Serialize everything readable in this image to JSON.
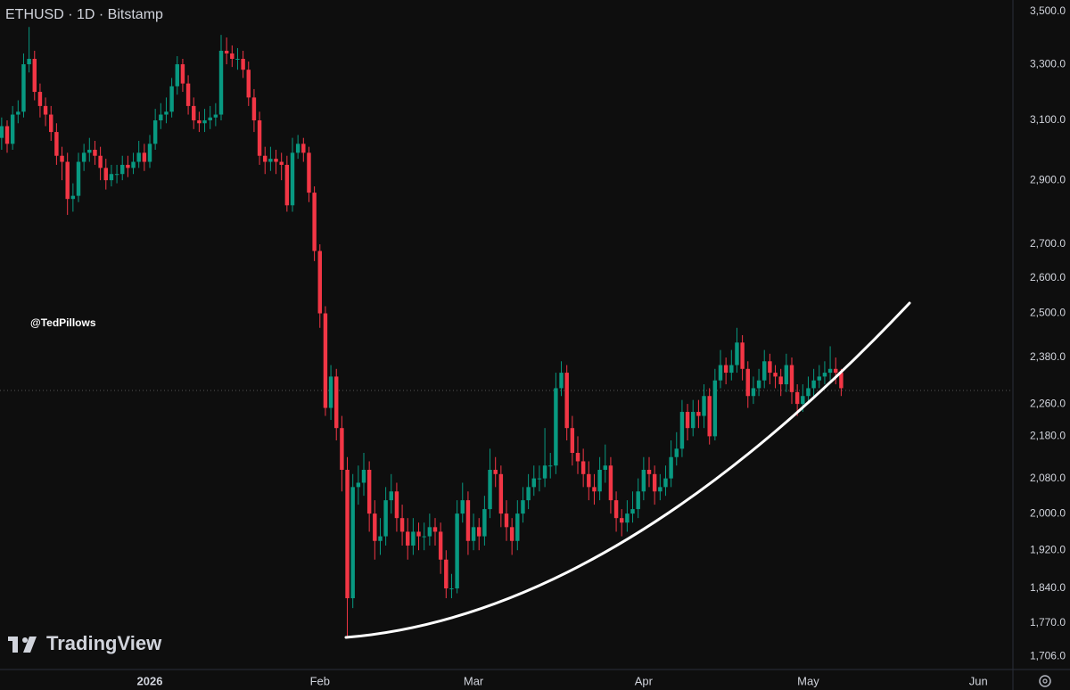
{
  "chart_data": {
    "type": "candlestick",
    "title": "ETHUSD · 1D · Bitstamp",
    "watermark": "@TedPillows",
    "brand": "TradingView",
    "up_color": "#089981",
    "down_color": "#f23645",
    "log_scale": true,
    "grid": false,
    "xlim": [
      -0.3,
      184.3
    ],
    "xticks": [
      {
        "value": 27,
        "label": "2026"
      },
      {
        "value": 58,
        "label": "Feb"
      },
      {
        "value": 86,
        "label": "Mar"
      },
      {
        "value": 117,
        "label": "Apr"
      },
      {
        "value": 147,
        "label": "May"
      },
      {
        "value": 178,
        "label": "Jun"
      }
    ],
    "ylim": [
      1681,
      3545
    ],
    "yticks": [
      {
        "value": 3500,
        "label": "3,500.0"
      },
      {
        "value": 3300,
        "label": "3,300.0"
      },
      {
        "value": 3100,
        "label": "3,100.0"
      },
      {
        "value": 2900,
        "label": "2,900.0"
      },
      {
        "value": 2700,
        "label": "2,700.0"
      },
      {
        "value": 2600,
        "label": "2,600.0"
      },
      {
        "value": 2500,
        "label": "2,500.0"
      },
      {
        "value": 2380,
        "label": "2,380.0"
      },
      {
        "value": 2260,
        "label": "2,260.0"
      },
      {
        "value": 2180,
        "label": "2,180.0"
      },
      {
        "value": 2080,
        "label": "2,080.0"
      },
      {
        "value": 2000,
        "label": "2,000.0"
      },
      {
        "value": 1920,
        "label": "1,920.0"
      },
      {
        "value": 1840,
        "label": "1,840.0"
      },
      {
        "value": 1770,
        "label": "1,770.0"
      },
      {
        "value": 1706,
        "label": "1,706.0"
      }
    ],
    "open": [
      3040,
      3080,
      3020,
      3120,
      3130,
      3300,
      3320,
      3200,
      3150,
      3120,
      3060,
      2980,
      2960,
      2840,
      2850,
      2960,
      2990,
      3000,
      2980,
      2940,
      2900,
      2920,
      2920,
      2950,
      2940,
      2960,
      2990,
      2960,
      3020,
      3100,
      3120,
      3130,
      3220,
      3300,
      3230,
      3150,
      3100,
      3090,
      3100,
      3110,
      3120,
      3350,
      3340,
      3320,
      3320,
      3280,
      3180,
      3100,
      2980,
      2960,
      2970,
      2960,
      2950,
      2820,
      2990,
      3020,
      2990,
      2860,
      2680,
      2500,
      2250,
      2330,
      2200,
      2100,
      1820,
      2060,
      2070,
      2100,
      2000,
      1940,
      1950,
      2030,
      2050,
      1990,
      1960,
      1930,
      1960,
      1950,
      1950,
      1970,
      1960,
      1900,
      1840,
      1840,
      2000,
      2030,
      1940,
      1970,
      1950,
      2010,
      2100,
      2090,
      2000,
      1970,
      1940,
      2000,
      2030,
      2060,
      2080,
      2080,
      2110,
      2110,
      2300,
      2340,
      2200,
      2140,
      2120,
      2090,
      2060,
      2050,
      2100,
      2110,
      2030,
      1990,
      1980,
      2000,
      2010,
      2050,
      2100,
      2090,
      2050,
      2060,
      2080,
      2130,
      2150,
      2240,
      2200,
      2240,
      2230,
      2280,
      2180,
      2320,
      2360,
      2340,
      2360,
      2420,
      2350,
      2280,
      2300,
      2320,
      2370,
      2340,
      2330,
      2310,
      2360,
      2290,
      2260,
      2280,
      2300,
      2320,
      2330,
      2340,
      2350,
      2340
    ],
    "high": [
      3110,
      3100,
      3150,
      3170,
      3340,
      3440,
      3350,
      3230,
      3180,
      3150,
      3090,
      3010,
      2990,
      2890,
      2990,
      3020,
      3040,
      3030,
      3010,
      2970,
      2950,
      2950,
      2980,
      2980,
      2990,
      3030,
      3020,
      3050,
      3140,
      3160,
      3180,
      3250,
      3330,
      3320,
      3260,
      3180,
      3130,
      3140,
      3150,
      3160,
      3410,
      3400,
      3370,
      3360,
      3350,
      3310,
      3210,
      3130,
      3010,
      3010,
      3000,
      2990,
      2980,
      3040,
      3050,
      3040,
      3010,
      2880,
      2700,
      2520,
      2360,
      2350,
      2230,
      2130,
      2090,
      2110,
      2140,
      2120,
      2030,
      1990,
      2060,
      2090,
      2070,
      2020,
      1990,
      1990,
      1980,
      1980,
      2000,
      1990,
      1980,
      1920,
      1870,
      2030,
      2070,
      2050,
      2000,
      1990,
      2040,
      2150,
      2130,
      2110,
      2030,
      1990,
      2030,
      2060,
      2090,
      2110,
      2110,
      2200,
      2140,
      2340,
      2370,
      2360,
      2230,
      2180,
      2150,
      2120,
      2090,
      2130,
      2160,
      2130,
      2050,
      2010,
      2030,
      2050,
      2080,
      2130,
      2130,
      2110,
      2090,
      2110,
      2170,
      2190,
      2270,
      2260,
      2270,
      2270,
      2310,
      2300,
      2350,
      2400,
      2380,
      2400,
      2460,
      2440,
      2370,
      2330,
      2350,
      2400,
      2390,
      2360,
      2350,
      2390,
      2380,
      2310,
      2310,
      2330,
      2350,
      2360,
      2370,
      2410,
      2380,
      2350
    ],
    "low": [
      3000,
      2990,
      3000,
      3090,
      3110,
      3270,
      3170,
      3110,
      3080,
      3030,
      2950,
      2900,
      2790,
      2800,
      2830,
      2930,
      2960,
      2950,
      2900,
      2870,
      2880,
      2890,
      2900,
      2910,
      2920,
      2940,
      2930,
      2940,
      3000,
      3070,
      3090,
      3110,
      3190,
      3200,
      3120,
      3070,
      3060,
      3060,
      3070,
      3080,
      3100,
      3300,
      3290,
      3280,
      3250,
      3150,
      3060,
      2950,
      2920,
      2930,
      2920,
      2900,
      2800,
      2800,
      2970,
      2960,
      2830,
      2650,
      2460,
      2230,
      2220,
      2170,
      2050,
      1745,
      1800,
      2020,
      2040,
      1960,
      1900,
      1910,
      1930,
      2000,
      1960,
      1930,
      1900,
      1910,
      1920,
      1920,
      1930,
      1930,
      1870,
      1820,
      1820,
      1830,
      1980,
      1910,
      1920,
      1920,
      1930,
      1990,
      2060,
      1970,
      1940,
      1910,
      1920,
      1980,
      2010,
      2040,
      2050,
      2060,
      2080,
      2090,
      2280,
      2170,
      2110,
      2090,
      2060,
      2030,
      2020,
      2030,
      2070,
      2000,
      1960,
      1950,
      1960,
      1980,
      1990,
      2030,
      2060,
      2020,
      2030,
      2040,
      2060,
      2110,
      2130,
      2170,
      2180,
      2200,
      2200,
      2160,
      2170,
      2300,
      2310,
      2320,
      2340,
      2320,
      2250,
      2260,
      2280,
      2300,
      2310,
      2300,
      2280,
      2290,
      2260,
      2230,
      2240,
      2260,
      2280,
      2300,
      2310,
      2320,
      2310,
      2280
    ],
    "close": [
      3080,
      3020,
      3120,
      3130,
      3300,
      3320,
      3200,
      3150,
      3120,
      3060,
      2980,
      2960,
      2840,
      2850,
      2960,
      2990,
      3000,
      2980,
      2940,
      2900,
      2920,
      2920,
      2950,
      2940,
      2960,
      2990,
      2960,
      3020,
      3100,
      3120,
      3130,
      3220,
      3300,
      3230,
      3150,
      3100,
      3090,
      3100,
      3110,
      3120,
      3350,
      3340,
      3320,
      3320,
      3280,
      3180,
      3100,
      2980,
      2960,
      2970,
      2960,
      2950,
      2820,
      2990,
      3020,
      2990,
      2860,
      2680,
      2500,
      2250,
      2330,
      2200,
      2100,
      1820,
      2060,
      2070,
      2100,
      2000,
      1940,
      1950,
      2030,
      2050,
      1990,
      1960,
      1930,
      1960,
      1950,
      1950,
      1970,
      1960,
      1900,
      1840,
      1840,
      2000,
      2030,
      1940,
      1970,
      1950,
      2010,
      2100,
      2090,
      2000,
      1970,
      1940,
      2000,
      2030,
      2060,
      2080,
      2080,
      2110,
      2110,
      2300,
      2340,
      2200,
      2140,
      2120,
      2090,
      2060,
      2050,
      2100,
      2110,
      2030,
      1990,
      1980,
      2000,
      2010,
      2050,
      2100,
      2090,
      2050,
      2060,
      2080,
      2130,
      2150,
      2240,
      2200,
      2240,
      2230,
      2280,
      2180,
      2320,
      2360,
      2340,
      2360,
      2420,
      2350,
      2280,
      2300,
      2320,
      2370,
      2340,
      2330,
      2310,
      2360,
      2290,
      2260,
      2280,
      2300,
      2320,
      2330,
      2340,
      2350,
      2340,
      2300
    ]
  }
}
